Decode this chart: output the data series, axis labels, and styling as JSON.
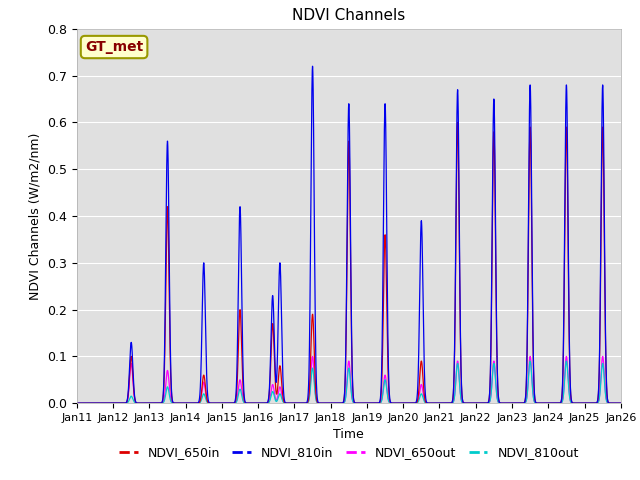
{
  "title": "NDVI Channels",
  "xlabel": "Time",
  "ylabel": "NDVI Channels (W/m2/nm)",
  "ylim": [
    0.0,
    0.8
  ],
  "yticks": [
    0.0,
    0.1,
    0.2,
    0.3,
    0.4,
    0.5,
    0.6,
    0.7,
    0.8
  ],
  "xtick_labels": [
    "Jan 11",
    "Jan 12",
    "Jan 13",
    "Jan 14",
    "Jan 15",
    "Jan 16",
    "Jan 17",
    "Jan 18",
    "Jan 19",
    "Jan 20",
    "Jan 21",
    "Jan 22",
    "Jan 23",
    "Jan 24",
    "Jan 25",
    "Jan 26"
  ],
  "colors": {
    "NDVI_650in": "#dd0000",
    "NDVI_810in": "#0000ee",
    "NDVI_650out": "#ff00ff",
    "NDVI_810out": "#00cccc"
  },
  "background_color": "#e0e0e0",
  "annotation_text": "GT_met",
  "annotation_color": "#880000",
  "annotation_bg": "#ffffcc",
  "annotation_border": "#999900",
  "peaks": [
    {
      "day": 1.5,
      "in650": 0.1,
      "in810": 0.13,
      "out650": 0.085,
      "out810": 0.015
    },
    {
      "day": 2.5,
      "in650": 0.42,
      "in810": 0.56,
      "out650": 0.07,
      "out810": 0.035
    },
    {
      "day": 3.5,
      "in650": 0.06,
      "in810": 0.3,
      "out650": 0.045,
      "out810": 0.02
    },
    {
      "day": 4.5,
      "in650": 0.2,
      "in810": 0.42,
      "out650": 0.05,
      "out810": 0.03
    },
    {
      "day": 5.4,
      "in650": 0.17,
      "in810": 0.23,
      "out650": 0.04,
      "out810": 0.025
    },
    {
      "day": 5.6,
      "in650": 0.08,
      "in810": 0.3,
      "out650": 0.035,
      "out810": 0.02
    },
    {
      "day": 6.5,
      "in650": 0.19,
      "in810": 0.72,
      "out650": 0.1,
      "out810": 0.075
    },
    {
      "day": 7.5,
      "in650": 0.56,
      "in810": 0.64,
      "out650": 0.09,
      "out810": 0.075
    },
    {
      "day": 8.5,
      "in650": 0.36,
      "in810": 0.64,
      "out650": 0.06,
      "out810": 0.05
    },
    {
      "day": 9.5,
      "in650": 0.09,
      "in810": 0.39,
      "out650": 0.04,
      "out810": 0.02
    },
    {
      "day": 10.5,
      "in650": 0.6,
      "in810": 0.67,
      "out650": 0.09,
      "out810": 0.085
    },
    {
      "day": 11.5,
      "in650": 0.58,
      "in810": 0.65,
      "out650": 0.09,
      "out810": 0.085
    },
    {
      "day": 12.5,
      "in650": 0.59,
      "in810": 0.68,
      "out650": 0.1,
      "out810": 0.09
    },
    {
      "day": 13.5,
      "in650": 0.59,
      "in810": 0.68,
      "out650": 0.1,
      "out810": 0.09
    },
    {
      "day": 14.5,
      "in650": 0.59,
      "in810": 0.68,
      "out650": 0.1,
      "out810": 0.085
    }
  ],
  "sigma": 0.045
}
